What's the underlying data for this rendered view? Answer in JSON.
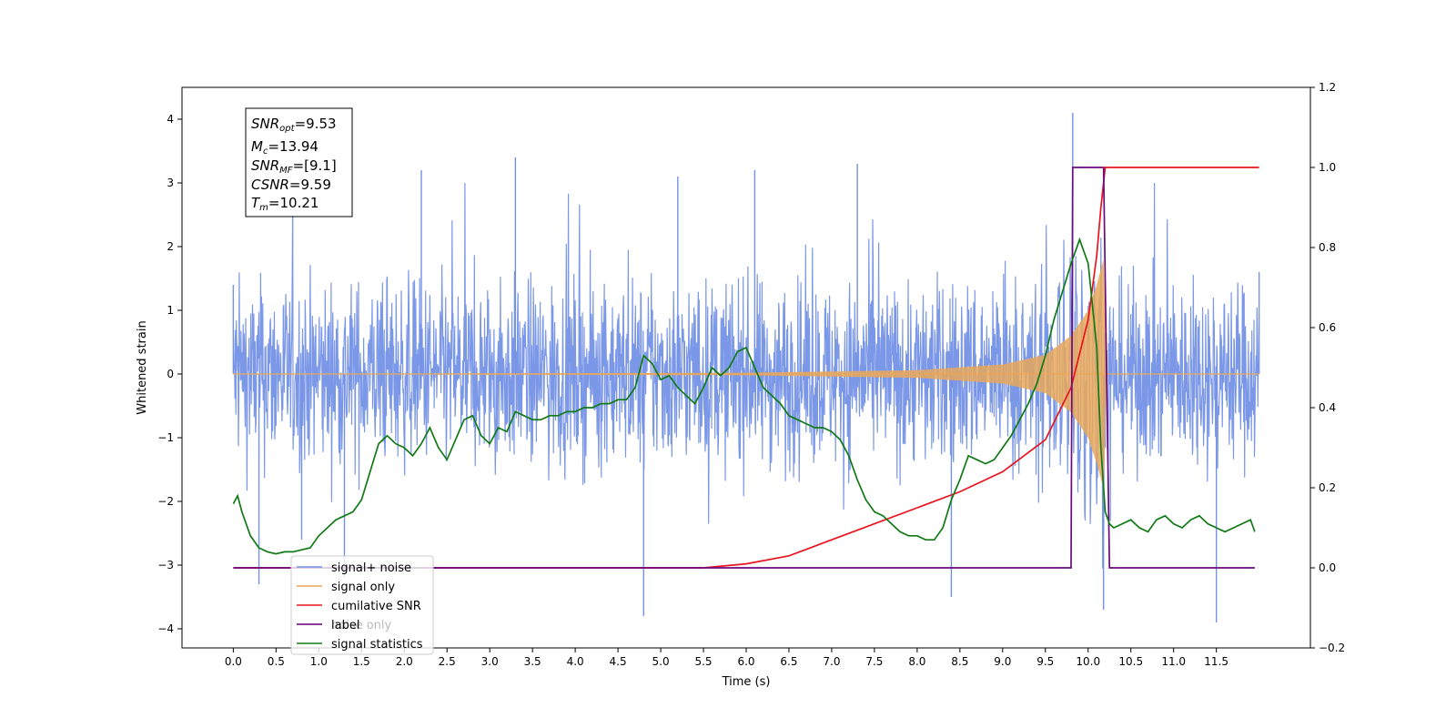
{
  "chart_data": {
    "type": "line",
    "xlabel": "Time (s)",
    "ylabel": "Whitened strain",
    "xlim": [
      -0.6,
      12.6
    ],
    "ylim_left": [
      -4.3,
      4.5
    ],
    "ylim_right": [
      -0.2,
      1.2
    ],
    "xticks": [
      "0.0",
      "0.5",
      "1.0",
      "1.5",
      "2.0",
      "2.5",
      "3.0",
      "3.5",
      "4.0",
      "4.5",
      "5.0",
      "5.5",
      "6.0",
      "6.5",
      "7.0",
      "7.5",
      "8.0",
      "8.5",
      "9.0",
      "9.5",
      "10.0",
      "10.5",
      "11.0",
      "11.5"
    ],
    "yticks_left": [
      "4",
      "3",
      "2",
      "1",
      "0",
      "−1",
      "−2",
      "−3",
      "−4"
    ],
    "yticks_right": [
      "1.2",
      "1.0",
      "0.8",
      "0.6",
      "0.4",
      "0.2",
      "0.0",
      "−0.2"
    ],
    "grid": false,
    "legend_position": "lower-left",
    "info_box": {
      "snr_opt": {
        "name": "SNR",
        "sub": "opt",
        "value": "=9.53"
      },
      "mc": {
        "name": "M",
        "sub": "c",
        "value": "=13.94"
      },
      "snr_mf": {
        "name": "SNR",
        "sub": "MF",
        "value": "=[9.1]"
      },
      "csnr": {
        "name": "CSNR",
        "value": "=9.59"
      },
      "tm": {
        "name": "T",
        "sub": "m",
        "value": "=10.21"
      }
    },
    "series": [
      {
        "name": "signal+ noise",
        "axis": "left",
        "color": "#7491e6",
        "note_visible": "dense noise, envelope about ±2.5 with spikes to 4.1 near t=9.82",
        "x": [
          0.0,
          0.3,
          0.8,
          1.3,
          2.2,
          3.3,
          4.8,
          5.2,
          6.1,
          7.3,
          8.4,
          9.82,
          10.18,
          11.5,
          12.0
        ],
        "y": [
          1.4,
          -3.3,
          -2.6,
          -3.2,
          3.2,
          3.4,
          -3.8,
          3.1,
          3.2,
          3.3,
          -3.5,
          4.1,
          -3.7,
          -3.9,
          1.6
        ]
      },
      {
        "name": "signal only",
        "axis": "left",
        "color": "#e8a75a",
        "note_visible": "chirp whose amplitude grows until merger near t=10.2",
        "x": [
          0.0,
          6.0,
          8.0,
          9.0,
          9.5,
          9.8,
          10.0,
          10.1,
          10.18,
          10.22,
          12.0
        ],
        "y": [
          0.0,
          0.02,
          0.06,
          0.15,
          0.3,
          0.6,
          1.0,
          1.4,
          1.8,
          0.0,
          0.0
        ]
      },
      {
        "name": "cumilative SNR",
        "axis": "right",
        "color": "#e8141e",
        "x": [
          0.0,
          5.5,
          6.0,
          6.5,
          7.0,
          7.5,
          8.0,
          8.5,
          9.0,
          9.5,
          9.8,
          10.0,
          10.1,
          10.15,
          10.2,
          10.22,
          12.0
        ],
        "y": [
          0.0,
          0.0,
          0.01,
          0.03,
          0.07,
          0.11,
          0.15,
          0.19,
          0.24,
          0.32,
          0.45,
          0.62,
          0.78,
          0.9,
          1.0,
          1.0,
          1.0
        ]
      },
      {
        "name": "label",
        "axis": "right",
        "color": "#6a0a7c",
        "x": [
          0.0,
          9.8,
          9.82,
          10.18,
          10.25,
          11.95
        ],
        "y": [
          0.0,
          0.0,
          1.0,
          1.0,
          0.0,
          0.0
        ]
      },
      {
        "name": "noise only",
        "axis": "left",
        "color": "#7e7e7e",
        "note_visible": "legend entry only; line hidden under other series"
      },
      {
        "name": "signal statistics",
        "axis": "right",
        "color": "#117a16",
        "x": [
          0.0,
          0.05,
          0.1,
          0.2,
          0.3,
          0.4,
          0.5,
          0.6,
          0.7,
          0.8,
          0.9,
          1.0,
          1.1,
          1.2,
          1.3,
          1.4,
          1.5,
          1.6,
          1.7,
          1.8,
          1.9,
          2.0,
          2.1,
          2.2,
          2.3,
          2.4,
          2.5,
          2.6,
          2.7,
          2.8,
          2.9,
          3.0,
          3.1,
          3.2,
          3.3,
          3.4,
          3.5,
          3.6,
          3.7,
          3.8,
          3.9,
          4.0,
          4.1,
          4.2,
          4.3,
          4.4,
          4.5,
          4.6,
          4.7,
          4.8,
          4.9,
          5.0,
          5.1,
          5.2,
          5.3,
          5.4,
          5.5,
          5.6,
          5.7,
          5.8,
          5.9,
          6.0,
          6.1,
          6.2,
          6.3,
          6.4,
          6.5,
          6.6,
          6.7,
          6.8,
          6.9,
          7.0,
          7.1,
          7.2,
          7.3,
          7.4,
          7.5,
          7.6,
          7.7,
          7.8,
          7.9,
          8.0,
          8.1,
          8.2,
          8.3,
          8.4,
          8.5,
          8.6,
          8.7,
          8.8,
          8.9,
          9.0,
          9.1,
          9.2,
          9.3,
          9.4,
          9.5,
          9.6,
          9.7,
          9.8,
          9.9,
          10.0,
          10.1,
          10.15,
          10.2,
          10.25,
          10.3,
          10.4,
          10.5,
          10.6,
          10.7,
          10.8,
          10.9,
          11.0,
          11.1,
          11.2,
          11.3,
          11.4,
          11.5,
          11.6,
          11.7,
          11.8,
          11.9,
          11.95
        ],
        "y": [
          0.16,
          0.18,
          0.14,
          0.08,
          0.05,
          0.04,
          0.035,
          0.04,
          0.04,
          0.045,
          0.05,
          0.08,
          0.1,
          0.12,
          0.13,
          0.14,
          0.17,
          0.24,
          0.31,
          0.33,
          0.31,
          0.3,
          0.28,
          0.31,
          0.35,
          0.3,
          0.27,
          0.32,
          0.37,
          0.38,
          0.33,
          0.31,
          0.35,
          0.34,
          0.39,
          0.38,
          0.37,
          0.37,
          0.38,
          0.38,
          0.39,
          0.39,
          0.4,
          0.4,
          0.41,
          0.41,
          0.42,
          0.42,
          0.45,
          0.53,
          0.51,
          0.47,
          0.48,
          0.45,
          0.43,
          0.41,
          0.45,
          0.5,
          0.48,
          0.5,
          0.54,
          0.55,
          0.5,
          0.45,
          0.43,
          0.41,
          0.38,
          0.37,
          0.36,
          0.35,
          0.35,
          0.34,
          0.32,
          0.28,
          0.22,
          0.17,
          0.14,
          0.13,
          0.11,
          0.09,
          0.08,
          0.08,
          0.07,
          0.07,
          0.1,
          0.17,
          0.22,
          0.28,
          0.27,
          0.26,
          0.27,
          0.3,
          0.33,
          0.37,
          0.41,
          0.46,
          0.53,
          0.62,
          0.69,
          0.76,
          0.82,
          0.76,
          0.55,
          0.3,
          0.14,
          0.11,
          0.1,
          0.11,
          0.12,
          0.1,
          0.09,
          0.12,
          0.13,
          0.11,
          0.1,
          0.12,
          0.13,
          0.11,
          0.1,
          0.09,
          0.1,
          0.11,
          0.12,
          0.09
        ]
      }
    ]
  }
}
